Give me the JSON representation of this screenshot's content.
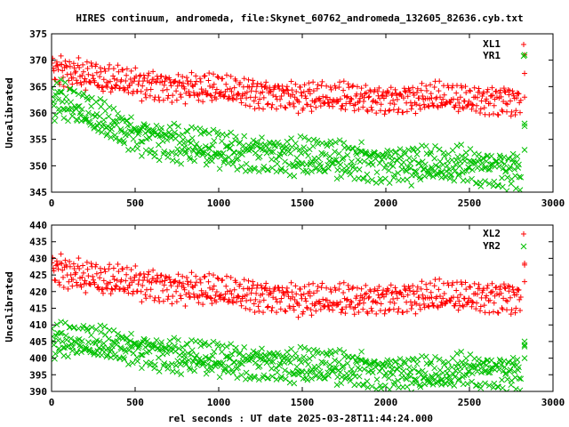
{
  "title": "HIRES continuum, andromeda, file:Skynet_60762_andromeda_132605_82636.cyb.txt",
  "xlabel": "rel seconds : UT date 2025-03-28T11:44:24.000",
  "colors": {
    "red": "#ff0000",
    "green": "#00c000",
    "axis": "#000000"
  },
  "chart_data": [
    {
      "type": "scatter",
      "ylabel": "Uncalibrated",
      "xlim": [
        0,
        3000
      ],
      "ylim": [
        345,
        375
      ],
      "x_ticks": [
        0,
        500,
        1000,
        1500,
        2000,
        2500,
        3000
      ],
      "y_ticks": [
        345,
        350,
        355,
        360,
        365,
        370,
        375
      ],
      "legend_position": "top-right",
      "series": [
        {
          "name": "XL1",
          "marker": "plus",
          "color": "#ff0000",
          "trend_x": [
            0,
            50,
            150,
            300,
            500,
            700,
            1000,
            1300,
            1500,
            1800,
            2000,
            2300,
            2500,
            2800
          ],
          "trend_y": [
            368.5,
            368,
            367.5,
            366.5,
            365.5,
            365,
            364.5,
            363.5,
            363,
            363,
            362.5,
            363,
            362.5,
            362.5
          ],
          "spread": 3.5,
          "outliers": [
            [
              2830,
              371
            ],
            [
              2830,
              367.5
            ],
            [
              2830,
              363
            ]
          ]
        },
        {
          "name": "YR1",
          "marker": "cross",
          "color": "#00c000",
          "trend_x": [
            0,
            50,
            150,
            300,
            500,
            700,
            1000,
            1300,
            1500,
            1800,
            2000,
            2300,
            2500,
            2800
          ],
          "trend_y": [
            362,
            363,
            361,
            358.5,
            356,
            354.5,
            353,
            352,
            351.5,
            351,
            350.5,
            350,
            350,
            349
          ],
          "spread": 4.5,
          "outliers": [
            [
              2830,
              371
            ],
            [
              2830,
              358
            ],
            [
              2830,
              357.5
            ],
            [
              2830,
              353
            ]
          ]
        }
      ]
    },
    {
      "type": "scatter",
      "ylabel": "Uncalibrated",
      "xlim": [
        0,
        3000
      ],
      "ylim": [
        390,
        440
      ],
      "x_ticks": [
        0,
        500,
        1000,
        1500,
        2000,
        2500,
        3000
      ],
      "y_ticks": [
        390,
        395,
        400,
        405,
        410,
        415,
        420,
        425,
        430,
        435,
        440
      ],
      "legend_position": "top-right",
      "series": [
        {
          "name": "XL2",
          "marker": "plus",
          "color": "#ff0000",
          "trend_x": [
            0,
            50,
            150,
            300,
            500,
            700,
            1000,
            1300,
            1500,
            1800,
            2000,
            2300,
            2500,
            2800
          ],
          "trend_y": [
            427,
            426.5,
            425,
            423.5,
            422.5,
            421.5,
            420,
            418.5,
            417.5,
            417.5,
            418,
            418.5,
            418.5,
            418.5
          ],
          "spread": 6,
          "outliers": [
            [
              2830,
              428.5
            ],
            [
              2830,
              428
            ],
            [
              2830,
              423
            ]
          ]
        },
        {
          "name": "YR2",
          "marker": "cross",
          "color": "#00c000",
          "trend_x": [
            0,
            50,
            150,
            300,
            500,
            700,
            1000,
            1300,
            1500,
            1800,
            2000,
            2300,
            2500,
            2800
          ],
          "trend_y": [
            405,
            406,
            405,
            404,
            403,
            401,
            399.5,
            398,
            397.5,
            397,
            396,
            395,
            396.5,
            395.5
          ],
          "spread": 6.5,
          "outliers": [
            [
              2830,
              405
            ],
            [
              2830,
              404
            ],
            [
              2830,
              403.5
            ],
            [
              2830,
              400
            ]
          ]
        }
      ]
    }
  ]
}
